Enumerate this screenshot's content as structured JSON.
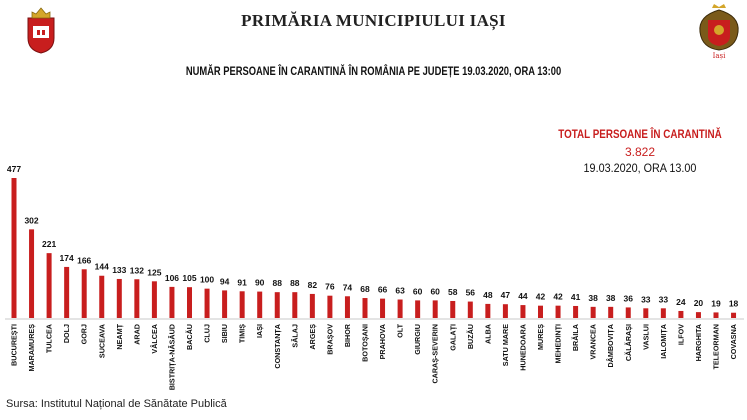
{
  "header": {
    "title": "PRIMĂRIA MUNICIPIULUI IAȘI",
    "left_logo": "city-coat-of-arms-icon",
    "right_logo": "iasi-heraldic-emblem-icon"
  },
  "colors": {
    "bar": "#c81e1e",
    "accent": "#c81e1e",
    "text": "#111111"
  },
  "summary": {
    "label": "TOTAL PERSOANE ÎN CARANTINĂ",
    "value": "3.822",
    "date": "19.03.2020, ORA 13.00"
  },
  "source": "Sursa: Institutul Național de Sănătate Publică",
  "chart_data": {
    "type": "bar",
    "title": "NUMĂR PERSOANE ÎN CARANTINĂ ÎN ROMÂNIA PE JUDEȚE 19.03.2020, ORA 13:00",
    "xlabel": "",
    "ylabel": "",
    "ylim": [
      0,
      500
    ],
    "grid": false,
    "legend": "none",
    "data_labels": true,
    "categories": [
      "BUCUREȘTI",
      "MARAMUREȘ",
      "TULCEA",
      "DOLJ",
      "GORJ",
      "SUCEAVA",
      "NEAMȚ",
      "ARAD",
      "VÂLCEA",
      "BISTRIȚA-NĂSĂUD",
      "BACĂU",
      "CLUJ",
      "SIBIU",
      "TIMIȘ",
      "IAȘI",
      "CONSTANȚA",
      "SĂLAJ",
      "ARGEȘ",
      "BRAȘOV",
      "BIHOR",
      "BOTOȘANI",
      "PRAHOVA",
      "OLT",
      "GIURGIU",
      "CARAȘ-SEVERIN",
      "GALAȚI",
      "BUZĂU",
      "ALBA",
      "SATU MARE",
      "HUNEDOARA",
      "MUREȘ",
      "MEHEDINȚI",
      "BRĂILA",
      "VRANCEA",
      "DÂMBOVIȚA",
      "CĂLĂRAȘI",
      "VASLUI",
      "IALOMIȚA",
      "ILFOV",
      "HARGHITA",
      "TELEORMAN",
      "COVASNA"
    ],
    "values": [
      477,
      302,
      221,
      174,
      166,
      144,
      133,
      132,
      125,
      106,
      105,
      100,
      94,
      91,
      90,
      88,
      88,
      82,
      76,
      74,
      68,
      66,
      63,
      60,
      60,
      58,
      56,
      48,
      47,
      44,
      42,
      42,
      41,
      38,
      38,
      36,
      33,
      33,
      24,
      20,
      19,
      18
    ]
  }
}
